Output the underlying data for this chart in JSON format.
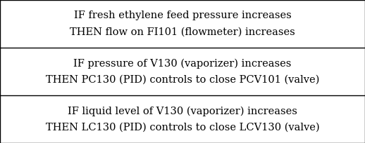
{
  "rows": [
    {
      "line1": "IF fresh ethylene feed pressure increases",
      "line2": "THEN flow on FI101 (flowmeter) increases"
    },
    {
      "line1": "IF pressure of V130 (vaporizer) increases",
      "line2": "THEN PC130 (PID) controls to close PCV101 (valve)"
    },
    {
      "line1": "IF liquid level of V130 (vaporizer) increases",
      "line2": "THEN LC130 (PID) controls to close LCV130 (valve)"
    }
  ],
  "bg_color": "#ffffff",
  "text_color": "#000000",
  "border_color": "#000000",
  "font_size": 10.5,
  "font_family": "DejaVu Serif",
  "fig_width": 5.18,
  "fig_height": 2.04,
  "dpi": 100
}
